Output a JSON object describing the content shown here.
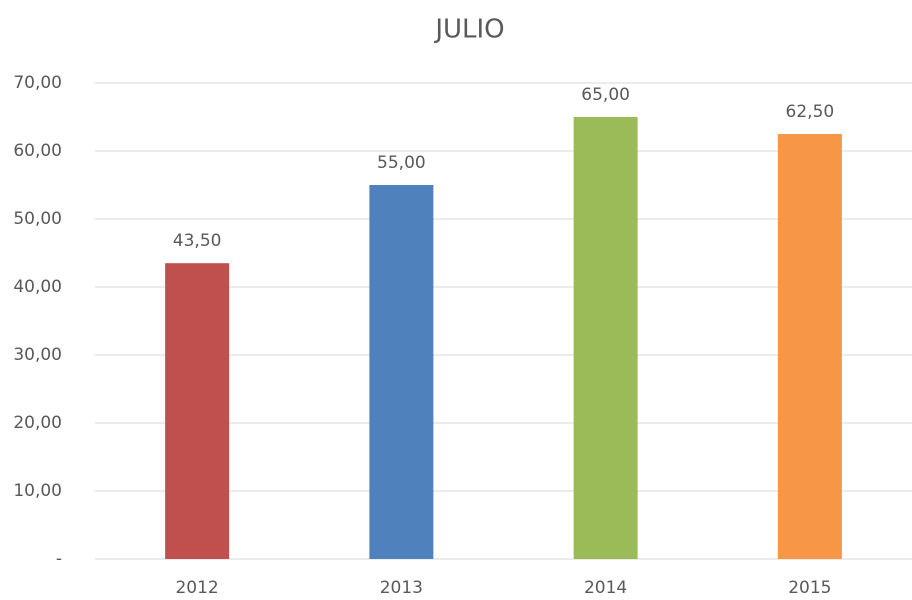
{
  "chart_data": {
    "type": "bar",
    "title": "JULIO",
    "categories": [
      "2012",
      "2013",
      "2014",
      "2015"
    ],
    "values": [
      43.5,
      55,
      65,
      62.5
    ],
    "value_labels": [
      "43,50",
      "55,00",
      "65,00",
      "62,50"
    ],
    "colors": [
      "#c0504d",
      "#4f81bd",
      "#9bbb59",
      "#f79646"
    ],
    "ylim": [
      0,
      70
    ],
    "yticks": [
      {
        "value": 0,
        "label": "-"
      },
      {
        "value": 10,
        "label": "10,00"
      },
      {
        "value": 20,
        "label": "20,00"
      },
      {
        "value": 30,
        "label": "30,00"
      },
      {
        "value": 40,
        "label": "40,00"
      },
      {
        "value": 50,
        "label": "50,00"
      },
      {
        "value": 60,
        "label": "60,00"
      },
      {
        "value": 70,
        "label": "70,00"
      }
    ],
    "grid": true
  }
}
